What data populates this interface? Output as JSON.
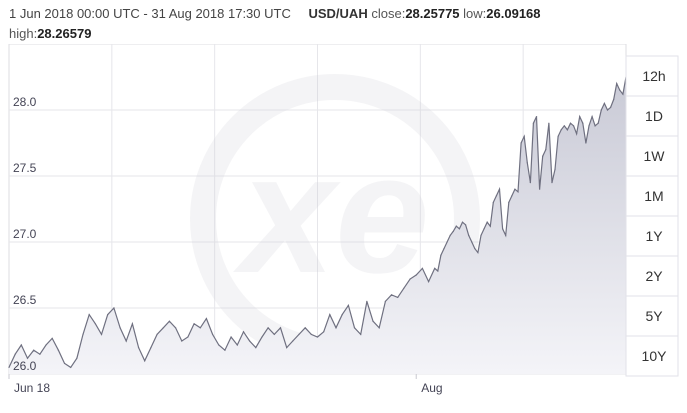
{
  "header": {
    "range": "1 Jun 2018 00:00 UTC - 31 Aug 2018 17:30 UTC",
    "pair": "USD/UAH",
    "close_label": "close:",
    "close_value": "28.25775",
    "low_label": "low:",
    "low_value": "26.09168",
    "high_label": "high:",
    "high_value": "28.26579"
  },
  "intervals": [
    "12h",
    "1D",
    "1W",
    "1M",
    "1Y",
    "2Y",
    "5Y",
    "10Y"
  ],
  "watermark": "xe",
  "colors": {
    "line": "#6f7080",
    "fill_top": "#c9cad6",
    "fill_bottom": "#f4f4f8",
    "grid": "#e6e6ea",
    "axis_text": "#445"
  },
  "chart_data": {
    "type": "area",
    "title": "",
    "xlabel": "",
    "ylabel": "",
    "ylim": [
      26.0,
      28.5
    ],
    "yticks": [
      "28.0",
      "27.5",
      "27.0",
      "26.5",
      "26.0"
    ],
    "ytick_values": [
      28.0,
      27.5,
      27.0,
      26.5,
      26.0
    ],
    "xticks": [
      "Jun 18",
      "Aug"
    ],
    "xtick_positions": [
      0.0,
      0.66
    ],
    "grid": true,
    "series": [
      {
        "name": "",
        "x": [
          0.0,
          0.01,
          0.02,
          0.03,
          0.04,
          0.05,
          0.06,
          0.07,
          0.08,
          0.09,
          0.1,
          0.11,
          0.12,
          0.13,
          0.14,
          0.15,
          0.16,
          0.17,
          0.18,
          0.19,
          0.2,
          0.21,
          0.22,
          0.23,
          0.24,
          0.25,
          0.26,
          0.27,
          0.28,
          0.29,
          0.3,
          0.31,
          0.32,
          0.33,
          0.34,
          0.35,
          0.36,
          0.37,
          0.38,
          0.39,
          0.4,
          0.41,
          0.42,
          0.43,
          0.44,
          0.45,
          0.46,
          0.47,
          0.48,
          0.49,
          0.5,
          0.51,
          0.52,
          0.53,
          0.54,
          0.55,
          0.56,
          0.57,
          0.58,
          0.59,
          0.6,
          0.61,
          0.62,
          0.63,
          0.64,
          0.65,
          0.66,
          0.67,
          0.68,
          0.69,
          0.695,
          0.7,
          0.705,
          0.71,
          0.715,
          0.72,
          0.725,
          0.73,
          0.735,
          0.74,
          0.745,
          0.75,
          0.755,
          0.76,
          0.765,
          0.77,
          0.775,
          0.78,
          0.785,
          0.79,
          0.795,
          0.8,
          0.805,
          0.81,
          0.815,
          0.82,
          0.825,
          0.83,
          0.835,
          0.84,
          0.845,
          0.85,
          0.855,
          0.86,
          0.865,
          0.87,
          0.875,
          0.88,
          0.885,
          0.89,
          0.895,
          0.9,
          0.905,
          0.91,
          0.915,
          0.92,
          0.925,
          0.93,
          0.935,
          0.94,
          0.945,
          0.95,
          0.955,
          0.96,
          0.965,
          0.97,
          0.975,
          0.98,
          0.985,
          0.99,
          0.995,
          1.0
        ],
        "values": [
          26.05,
          26.15,
          26.22,
          26.12,
          26.18,
          26.15,
          26.22,
          26.27,
          26.18,
          26.08,
          26.05,
          26.12,
          26.3,
          26.45,
          26.38,
          26.3,
          26.45,
          26.5,
          26.35,
          26.25,
          26.38,
          26.2,
          26.1,
          26.2,
          26.3,
          26.35,
          26.4,
          26.35,
          26.25,
          26.28,
          26.38,
          26.35,
          26.42,
          26.3,
          26.22,
          26.18,
          26.28,
          26.22,
          26.32,
          26.25,
          26.2,
          26.28,
          26.35,
          26.3,
          26.35,
          26.2,
          26.25,
          26.3,
          26.35,
          26.3,
          26.28,
          26.32,
          26.45,
          26.35,
          26.45,
          26.52,
          26.35,
          26.3,
          26.55,
          26.4,
          26.35,
          26.55,
          26.6,
          26.58,
          26.65,
          26.72,
          26.75,
          26.8,
          26.7,
          26.8,
          26.78,
          26.9,
          26.95,
          27.0,
          27.05,
          27.08,
          27.12,
          27.1,
          27.15,
          27.13,
          27.05,
          27.0,
          26.95,
          26.92,
          27.05,
          27.1,
          27.15,
          27.12,
          27.3,
          27.35,
          27.4,
          27.1,
          27.05,
          27.3,
          27.35,
          27.4,
          27.38,
          27.75,
          27.8,
          27.6,
          27.45,
          27.9,
          27.95,
          27.4,
          27.65,
          27.7,
          27.9,
          27.45,
          27.55,
          27.8,
          27.85,
          27.88,
          27.85,
          27.9,
          27.88,
          27.82,
          27.95,
          27.9,
          27.75,
          27.88,
          27.95,
          27.88,
          27.9,
          28.0,
          28.05,
          28.0,
          28.02,
          28.08,
          28.2,
          28.15,
          28.12,
          28.25
        ]
      }
    ]
  }
}
